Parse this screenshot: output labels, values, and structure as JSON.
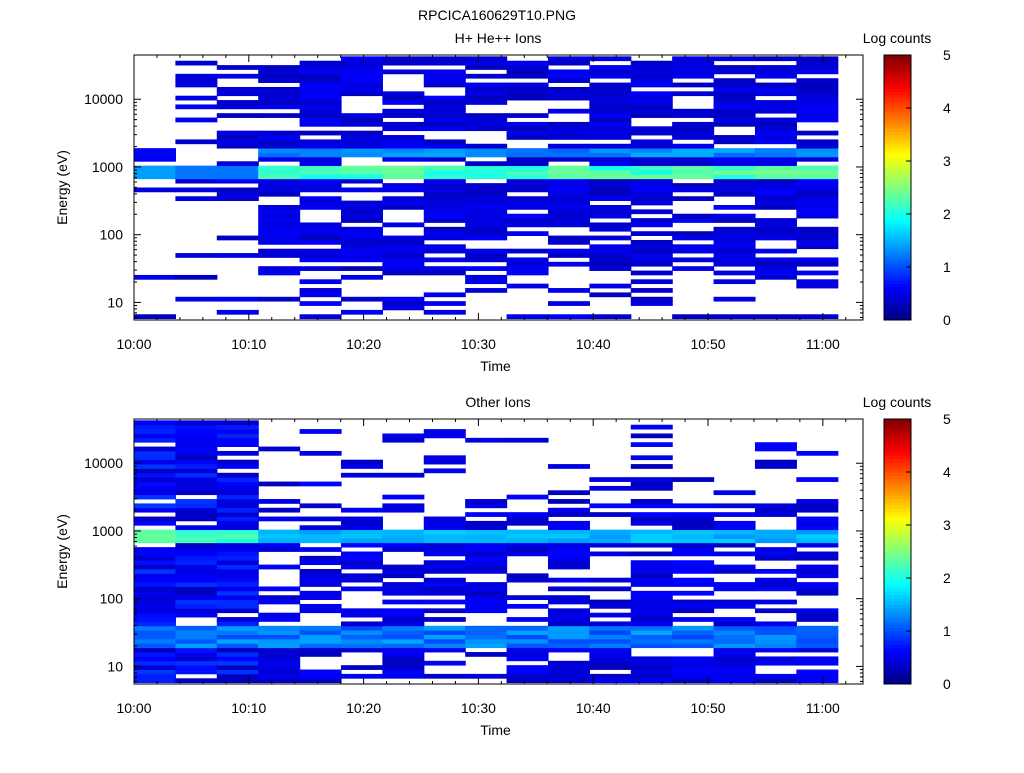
{
  "page_title": "RPCICA160629T10.PNG",
  "colorbar_ticks": [
    "0",
    "1",
    "2",
    "3",
    "4",
    "5"
  ],
  "chart_data": [
    {
      "type": "heatmap",
      "title": "H+ He++ Ions",
      "xlabel": "Time",
      "ylabel": "Energy (eV)",
      "colorbar_label": "Log counts",
      "x_ticks": [
        "10:00",
        "10:10",
        "10:20",
        "10:30",
        "10:40",
        "10:50",
        "11:00"
      ],
      "y_ticks": [
        "10",
        "100",
        "1000",
        "10000"
      ],
      "y_scale": "log",
      "ylim": [
        5.5,
        45000
      ],
      "color_range": [
        0,
        5
      ],
      "colormap": "jet",
      "time_range_minutes": [
        0,
        63.5
      ],
      "data_time_range_minutes": [
        0,
        61.3
      ],
      "time_bins": 17,
      "dominant_band_eV": [
        650,
        1000
      ],
      "dominant_band_log_counts": 2.2,
      "secondary_band_eV": 1700,
      "secondary_band_log_counts": 1.3,
      "background_log_counts": 0.3,
      "sparse_before": "10:10"
    },
    {
      "type": "heatmap",
      "title": "Other Ions",
      "xlabel": "Time",
      "ylabel": "Energy (eV)",
      "colorbar_label": "Log counts",
      "x_ticks": [
        "10:00",
        "10:10",
        "10:20",
        "10:30",
        "10:40",
        "10:50",
        "11:00"
      ],
      "y_ticks": [
        "10",
        "100",
        "1000",
        "10000"
      ],
      "y_scale": "log",
      "ylim": [
        5.5,
        45000
      ],
      "color_range": [
        0,
        5
      ],
      "colormap": "jet",
      "time_range_minutes": [
        0,
        63.5
      ],
      "data_time_range_minutes": [
        0,
        61.3
      ],
      "time_bins": 17,
      "dominant_band_eV": [
        700,
        1000
      ],
      "dominant_band_log_counts": 1.5,
      "low_energy_band_eV": [
        20,
        40
      ],
      "low_energy_band_log_counts": 1.2,
      "background_log_counts": 0.3,
      "dense_until": "10:10"
    }
  ]
}
